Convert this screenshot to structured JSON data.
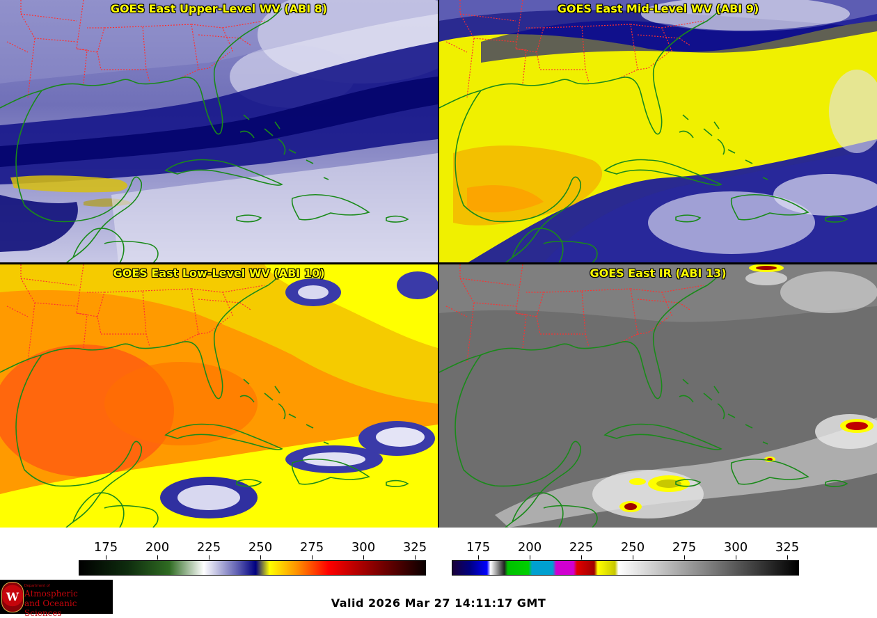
{
  "panels": [
    {
      "title": "GOES East Upper-Level WV (ABI 8)"
    },
    {
      "title": "GOES East Mid-Level WV (ABI 9)"
    },
    {
      "title": "GOES East Low-Level WV (ABI 10)"
    },
    {
      "title": "GOES East IR (ABI 13)"
    }
  ],
  "colorbars": {
    "wv": {
      "ticks": [
        "175",
        "200",
        "225",
        "250",
        "275",
        "300",
        "325"
      ]
    },
    "ir": {
      "ticks": [
        "175",
        "200",
        "225",
        "250",
        "275",
        "300",
        "325"
      ]
    }
  },
  "colors": {
    "title_text": "#ffff00",
    "state_borders": "#ff3030",
    "coastlines": "#1a8a1a"
  },
  "valid_time": "Valid 2026 Mar 27 14:11:17 GMT",
  "logo": {
    "initial": "W",
    "dept_line": "Department of",
    "line1": "Atmospheric",
    "line2": "and Oceanic Sciences"
  }
}
